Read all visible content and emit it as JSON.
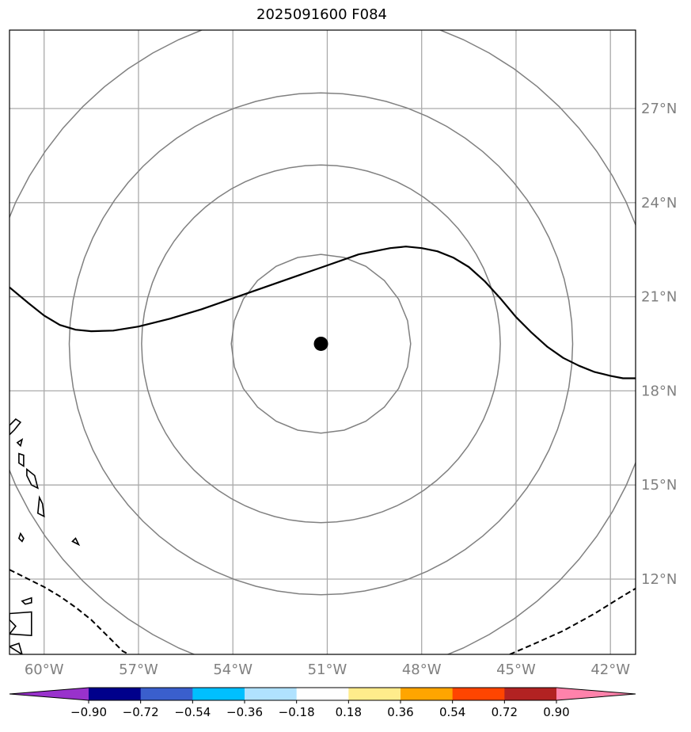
{
  "title": "2025091600 F084",
  "map": {
    "lon_range": [
      -61.1,
      -41.2
    ],
    "lat_range": [
      9.6,
      29.5
    ],
    "lon_ticks": [
      {
        "lon": -60,
        "label": "60°W"
      },
      {
        "lon": -57,
        "label": "57°W"
      },
      {
        "lon": -54,
        "label": "54°W"
      },
      {
        "lon": -51,
        "label": "51°W"
      },
      {
        "lon": -48,
        "label": "48°W"
      },
      {
        "lon": -45,
        "label": "45°W"
      },
      {
        "lon": -42,
        "label": "42°W"
      }
    ],
    "lat_ticks": [
      {
        "lat": 27,
        "label": "27°N"
      },
      {
        "lat": 24,
        "label": "24°N"
      },
      {
        "lat": 21,
        "label": "21°N"
      },
      {
        "lat": 18,
        "label": "18°N"
      },
      {
        "lat": 15,
        "label": "15°N"
      },
      {
        "lat": 12,
        "label": "12°N"
      }
    ],
    "gridline_color": "#aaaaaa",
    "range_ring_color": "#808080",
    "storm_center": {
      "lon": -51.2,
      "lat": 19.5
    },
    "range_rings_deg": [
      2.85,
      5.7,
      8.0,
      10.7
    ],
    "contour_line": [
      [
        -61.1,
        21.3
      ],
      [
        -60.5,
        20.8
      ],
      [
        -60,
        20.4
      ],
      [
        -59.5,
        20.1
      ],
      [
        -59,
        19.95
      ],
      [
        -58.5,
        19.9
      ],
      [
        -57.8,
        19.92
      ],
      [
        -57,
        20.05
      ],
      [
        -56,
        20.3
      ],
      [
        -55,
        20.6
      ],
      [
        -54,
        20.95
      ],
      [
        -53,
        21.3
      ],
      [
        -52,
        21.65
      ],
      [
        -51,
        22.0
      ],
      [
        -50,
        22.35
      ],
      [
        -49,
        22.55
      ],
      [
        -48.5,
        22.6
      ],
      [
        -48,
        22.55
      ],
      [
        -47.5,
        22.45
      ],
      [
        -47,
        22.25
      ],
      [
        -46.5,
        21.95
      ],
      [
        -46,
        21.5
      ],
      [
        -45.5,
        20.95
      ],
      [
        -45,
        20.35
      ],
      [
        -44.5,
        19.85
      ],
      [
        -44,
        19.4
      ],
      [
        -43.5,
        19.05
      ],
      [
        -43,
        18.8
      ],
      [
        -42.5,
        18.6
      ],
      [
        -42,
        18.48
      ],
      [
        -41.6,
        18.4
      ],
      [
        -41.2,
        18.4
      ]
    ],
    "dashed_boundary_west": [
      [
        -61.1,
        12.3
      ],
      [
        -60.5,
        12.0
      ],
      [
        -60,
        11.75
      ],
      [
        -59.5,
        11.45
      ],
      [
        -59,
        11.1
      ],
      [
        -58.5,
        10.7
      ],
      [
        -58,
        10.2
      ],
      [
        -57.5,
        9.7
      ],
      [
        -57.3,
        9.6
      ]
    ],
    "dashed_boundary_east": [
      [
        -45.2,
        9.6
      ],
      [
        -44.5,
        9.9
      ],
      [
        -43.5,
        10.35
      ],
      [
        -42.5,
        10.9
      ],
      [
        -41.7,
        11.4
      ],
      [
        -41.2,
        11.7
      ]
    ],
    "islands": [
      [
        [
          -61.1,
          16.9
        ],
        [
          -60.9,
          17.1
        ],
        [
          -60.75,
          17.0
        ],
        [
          -60.95,
          16.75
        ],
        [
          -61.1,
          16.6
        ]
      ],
      [
        [
          -60.85,
          16.35
        ],
        [
          -60.7,
          16.45
        ],
        [
          -60.75,
          16.25
        ]
      ],
      [
        [
          -60.8,
          16.0
        ],
        [
          -60.65,
          15.95
        ],
        [
          -60.65,
          15.6
        ],
        [
          -60.8,
          15.7
        ]
      ],
      [
        [
          -60.55,
          15.5
        ],
        [
          -60.3,
          15.3
        ],
        [
          -60.2,
          14.9
        ],
        [
          -60.4,
          15.0
        ],
        [
          -60.55,
          15.3
        ]
      ],
      [
        [
          -60.15,
          14.6
        ],
        [
          -60.05,
          14.4
        ],
        [
          -60.0,
          14.0
        ],
        [
          -60.2,
          14.1
        ]
      ],
      [
        [
          -60.75,
          13.45
        ],
        [
          -60.65,
          13.3
        ],
        [
          -60.7,
          13.2
        ],
        [
          -60.8,
          13.3
        ]
      ],
      [
        [
          -59.0,
          13.3
        ],
        [
          -58.9,
          13.1
        ],
        [
          -59.1,
          13.2
        ]
      ],
      [
        [
          -60.7,
          11.3
        ],
        [
          -60.4,
          11.4
        ],
        [
          -60.4,
          11.25
        ],
        [
          -60.6,
          11.2
        ]
      ],
      [
        [
          -61.1,
          10.9
        ],
        [
          -60.4,
          10.95
        ],
        [
          -60.4,
          10.2
        ],
        [
          -61.1,
          10.25
        ],
        [
          -60.9,
          10.5
        ],
        [
          -61.1,
          10.7
        ]
      ],
      [
        [
          -61.1,
          9.85
        ],
        [
          -60.8,
          9.95
        ],
        [
          -60.7,
          9.6
        ]
      ]
    ]
  },
  "colorbar": {
    "colors": [
      "#9932cc",
      "#00008b",
      "#3a5fcd",
      "#00bfff",
      "#b0e2ff",
      "#ffffff",
      "#ffec8b",
      "#ffa500",
      "#ff4500",
      "#b22222",
      "#ff82ab"
    ],
    "tick_labels": [
      "−0.90",
      "−0.72",
      "−0.54",
      "−0.36",
      "−0.18",
      "0.18",
      "0.36",
      "0.54",
      "0.72",
      "0.90"
    ]
  }
}
